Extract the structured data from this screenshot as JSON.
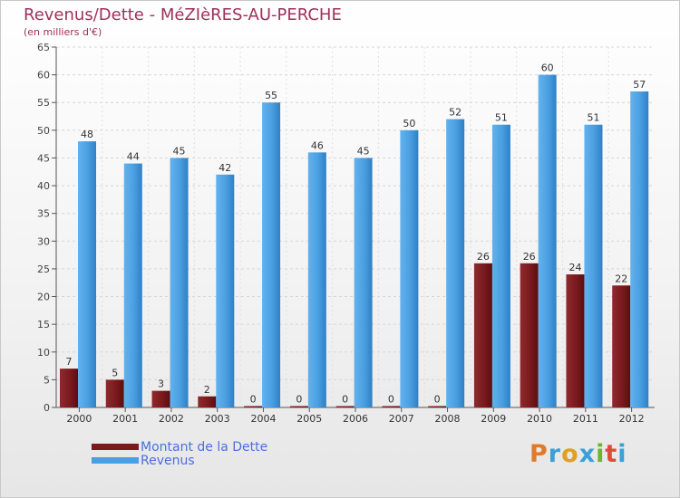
{
  "title": "Revenus/Dette - MéZIèRES-AU-PERCHE",
  "subtitle": "(en milliers d'€)",
  "brand": "Proxiti",
  "colors": {
    "title": "#a0305a",
    "dette": "#7a1a1e",
    "revenus": "#4a9fe0",
    "legend_text": "#4a6fe0"
  },
  "chart_data": {
    "type": "bar",
    "categories": [
      "2000",
      "2001",
      "2002",
      "2003",
      "2004",
      "2005",
      "2006",
      "2007",
      "2008",
      "2009",
      "2010",
      "2011",
      "2012"
    ],
    "series": [
      {
        "name": "Montant de la Dette",
        "values": [
          7,
          5,
          3,
          2,
          0,
          0,
          0,
          0,
          0,
          26,
          26,
          24,
          22
        ]
      },
      {
        "name": "Revenus",
        "values": [
          48,
          44,
          45,
          42,
          55,
          46,
          45,
          50,
          52,
          51,
          60,
          51,
          57
        ]
      }
    ],
    "ylim": [
      0,
      65
    ],
    "yticks": [
      0,
      5,
      10,
      15,
      20,
      25,
      30,
      35,
      40,
      45,
      50,
      55,
      60,
      65
    ],
    "grid": true,
    "legend": "bottom-left"
  },
  "legend": {
    "items": [
      {
        "label": "Montant de la Dette"
      },
      {
        "label": "Revenus"
      }
    ]
  }
}
